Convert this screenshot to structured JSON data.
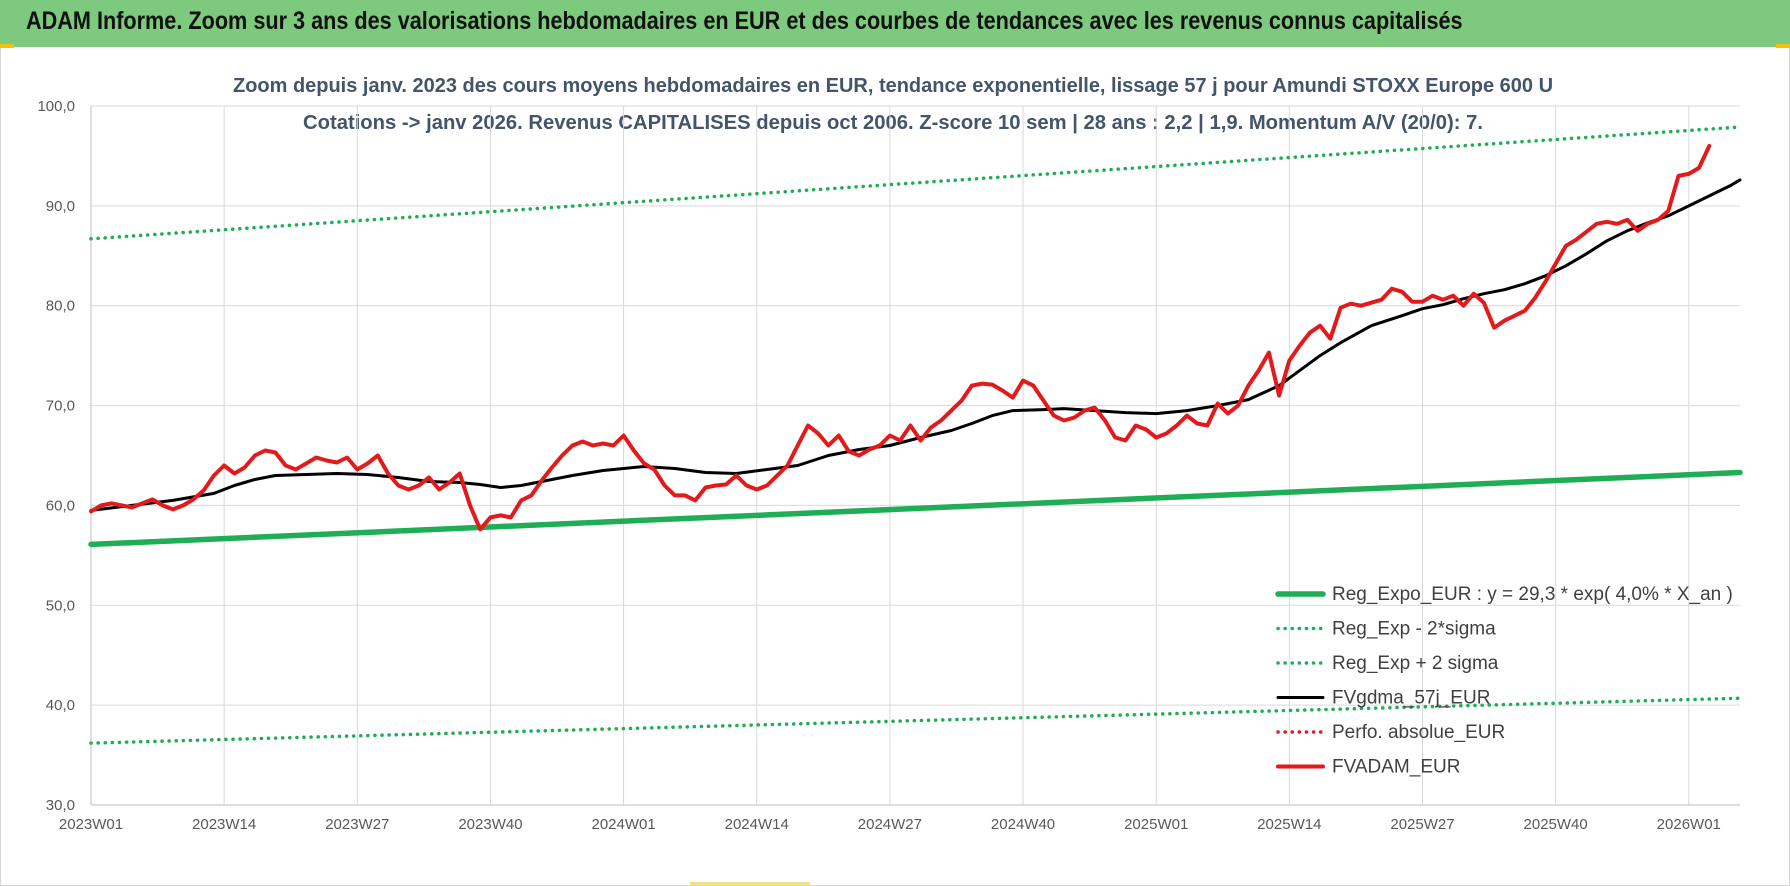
{
  "header": {
    "title": "ADAM Informe. Zoom sur 3 ans des valorisations hebdomadaires en EUR et des courbes de tendances avec les revenus connus capitalisés"
  },
  "chart_data": {
    "type": "line",
    "subtitle_line1": "Zoom depuis janv. 2023 des cours moyens hebdomadaires en EUR, tendance exponentielle, lissage 57 j pour Amundi STOXX Europe 600 U",
    "subtitle_line2": "Cotations -> janv 2026. Revenus CAPITALISES depuis oct 2006. Z-score 10 sem | 28 ans : 2,2 | 1,9. Momentum A/V (20/0): 7.",
    "x_ticks": [
      {
        "label": "2023W01",
        "week": 0
      },
      {
        "label": "2023W14",
        "week": 13
      },
      {
        "label": "2023W27",
        "week": 26
      },
      {
        "label": "2023W40",
        "week": 39
      },
      {
        "label": "2024W01",
        "week": 52
      },
      {
        "label": "2024W14",
        "week": 65
      },
      {
        "label": "2024W27",
        "week": 78
      },
      {
        "label": "2024W40",
        "week": 91
      },
      {
        "label": "2025W01",
        "week": 104
      },
      {
        "label": "2025W14",
        "week": 117
      },
      {
        "label": "2025W27",
        "week": 130
      },
      {
        "label": "2025W40",
        "week": 143
      },
      {
        "label": "2026W01",
        "week": 156
      }
    ],
    "x_range": [
      0,
      161
    ],
    "ylim": [
      30,
      100
    ],
    "y_ticks": [
      30,
      40,
      50,
      60,
      70,
      80,
      90,
      100
    ],
    "y_tick_labels": [
      "30,0",
      "40,0",
      "50,0",
      "60,0",
      "70,0",
      "80,0",
      "90,0",
      "100,0"
    ],
    "grid": true,
    "legend_position": "bottom-right",
    "series": [
      {
        "name": "Reg_Expo_EUR : y = 29,3 * exp( 4,0% *  X_an )",
        "color": "#1fad55",
        "style": "solid-thick",
        "points": [
          [
            0,
            56.1
          ],
          [
            161,
            63.3
          ]
        ]
      },
      {
        "name": "Reg_Exp - 2*sigma",
        "color": "#1fad55",
        "style": "dotted",
        "points": [
          [
            0,
            36.2
          ],
          [
            161,
            40.7
          ]
        ]
      },
      {
        "name": "Reg_Exp + 2 sigma",
        "color": "#1fad55",
        "style": "dotted",
        "points": [
          [
            0,
            86.7
          ],
          [
            161,
            97.9
          ]
        ]
      },
      {
        "name": "FVgdma_57j_EUR",
        "color": "#000000",
        "style": "solid",
        "points": [
          [
            0,
            59.5
          ],
          [
            4,
            60
          ],
          [
            8,
            60.5
          ],
          [
            12,
            61.2
          ],
          [
            14,
            62
          ],
          [
            16,
            62.6
          ],
          [
            18,
            63
          ],
          [
            21,
            63.1
          ],
          [
            24,
            63.2
          ],
          [
            27,
            63.1
          ],
          [
            30,
            62.8
          ],
          [
            33,
            62.4
          ],
          [
            36,
            62.3
          ],
          [
            38,
            62.1
          ],
          [
            40,
            61.8
          ],
          [
            42,
            62
          ],
          [
            44,
            62.4
          ],
          [
            47,
            63
          ],
          [
            50,
            63.5
          ],
          [
            52,
            63.7
          ],
          [
            54,
            63.9
          ],
          [
            57,
            63.7
          ],
          [
            60,
            63.3
          ],
          [
            63,
            63.2
          ],
          [
            66,
            63.6
          ],
          [
            69,
            64
          ],
          [
            72,
            65
          ],
          [
            75,
            65.6
          ],
          [
            78,
            66
          ],
          [
            81,
            66.8
          ],
          [
            84,
            67.5
          ],
          [
            86,
            68.2
          ],
          [
            88,
            69
          ],
          [
            90,
            69.5
          ],
          [
            93,
            69.6
          ],
          [
            95,
            69.7
          ],
          [
            98,
            69.5
          ],
          [
            101,
            69.3
          ],
          [
            104,
            69.2
          ],
          [
            107,
            69.5
          ],
          [
            110,
            70
          ],
          [
            113,
            70.6
          ],
          [
            116,
            72
          ],
          [
            118,
            73.5
          ],
          [
            120,
            75
          ],
          [
            122,
            76.3
          ],
          [
            125,
            78
          ],
          [
            128,
            79
          ],
          [
            130,
            79.7
          ],
          [
            132,
            80.1
          ],
          [
            134,
            80.7
          ],
          [
            136,
            81.2
          ],
          [
            138,
            81.6
          ],
          [
            140,
            82.2
          ],
          [
            142,
            83
          ],
          [
            144,
            84
          ],
          [
            146,
            85.2
          ],
          [
            148,
            86.5
          ],
          [
            150,
            87.5
          ],
          [
            152,
            88.3
          ],
          [
            154,
            89
          ],
          [
            156,
            90
          ],
          [
            158,
            91
          ],
          [
            160,
            92
          ],
          [
            161,
            92.6
          ]
        ]
      },
      {
        "name": "Perfo. absolue_EUR",
        "color": "#e31a1c",
        "style": "dotted",
        "points": []
      },
      {
        "name": "FVADAM_EUR",
        "color": "#e31a1c",
        "style": "solid-thick",
        "points": [
          [
            0,
            59.4
          ],
          [
            1,
            60
          ],
          [
            2,
            60.2
          ],
          [
            3,
            60
          ],
          [
            4,
            59.8
          ],
          [
            5,
            60.2
          ],
          [
            6,
            60.6
          ],
          [
            7,
            60
          ],
          [
            8,
            59.6
          ],
          [
            9,
            60
          ],
          [
            10,
            60.6
          ],
          [
            11,
            61.5
          ],
          [
            12,
            63
          ],
          [
            13,
            64
          ],
          [
            14,
            63.2
          ],
          [
            15,
            63.8
          ],
          [
            16,
            65
          ],
          [
            17,
            65.5
          ],
          [
            18,
            65.3
          ],
          [
            19,
            64
          ],
          [
            20,
            63.6
          ],
          [
            21,
            64.2
          ],
          [
            22,
            64.8
          ],
          [
            23,
            64.5
          ],
          [
            24,
            64.3
          ],
          [
            25,
            64.8
          ],
          [
            26,
            63.6
          ],
          [
            27,
            64.2
          ],
          [
            28,
            65
          ],
          [
            29,
            63.2
          ],
          [
            30,
            62
          ],
          [
            31,
            61.6
          ],
          [
            32,
            62
          ],
          [
            33,
            62.8
          ],
          [
            34,
            61.6
          ],
          [
            35,
            62.3
          ],
          [
            36,
            63.2
          ],
          [
            37,
            60
          ],
          [
            38,
            57.6
          ],
          [
            39,
            58.8
          ],
          [
            40,
            59
          ],
          [
            41,
            58.8
          ],
          [
            42,
            60.5
          ],
          [
            43,
            61
          ],
          [
            44,
            62.5
          ],
          [
            45,
            63.8
          ],
          [
            46,
            65
          ],
          [
            47,
            66
          ],
          [
            48,
            66.4
          ],
          [
            49,
            66
          ],
          [
            50,
            66.2
          ],
          [
            51,
            66
          ],
          [
            52,
            67
          ],
          [
            53,
            65.5
          ],
          [
            54,
            64.2
          ],
          [
            55,
            63.6
          ],
          [
            56,
            62
          ],
          [
            57,
            61
          ],
          [
            58,
            61
          ],
          [
            59,
            60.5
          ],
          [
            60,
            61.8
          ],
          [
            61,
            62
          ],
          [
            62,
            62.1
          ],
          [
            63,
            63
          ],
          [
            64,
            62
          ],
          [
            65,
            61.6
          ],
          [
            66,
            62
          ],
          [
            67,
            63
          ],
          [
            68,
            64
          ],
          [
            69,
            66
          ],
          [
            70,
            68
          ],
          [
            71,
            67.2
          ],
          [
            72,
            66
          ],
          [
            73,
            67
          ],
          [
            74,
            65.4
          ],
          [
            75,
            65
          ],
          [
            76,
            65.6
          ],
          [
            77,
            66
          ],
          [
            78,
            67
          ],
          [
            79,
            66.5
          ],
          [
            80,
            68
          ],
          [
            81,
            66.5
          ],
          [
            82,
            67.8
          ],
          [
            83,
            68.5
          ],
          [
            84,
            69.5
          ],
          [
            85,
            70.5
          ],
          [
            86,
            72
          ],
          [
            87,
            72.2
          ],
          [
            88,
            72.1
          ],
          [
            89,
            71.5
          ],
          [
            90,
            70.8
          ],
          [
            91,
            72.5
          ],
          [
            92,
            72
          ],
          [
            93,
            70.5
          ],
          [
            94,
            69
          ],
          [
            95,
            68.5
          ],
          [
            96,
            68.8
          ],
          [
            97,
            69.5
          ],
          [
            98,
            69.8
          ],
          [
            99,
            68.5
          ],
          [
            100,
            66.8
          ],
          [
            101,
            66.5
          ],
          [
            102,
            68
          ],
          [
            103,
            67.6
          ],
          [
            104,
            66.8
          ],
          [
            105,
            67.2
          ],
          [
            106,
            68
          ],
          [
            107,
            69
          ],
          [
            108,
            68.2
          ],
          [
            109,
            68
          ],
          [
            110,
            70.2
          ],
          [
            111,
            69.2
          ],
          [
            112,
            70
          ],
          [
            113,
            72
          ],
          [
            114,
            73.5
          ],
          [
            115,
            75.3
          ],
          [
            116,
            71
          ],
          [
            117,
            74.5
          ],
          [
            118,
            76
          ],
          [
            119,
            77.3
          ],
          [
            120,
            78
          ],
          [
            121,
            76.7
          ],
          [
            122,
            79.8
          ],
          [
            123,
            80.2
          ],
          [
            124,
            80
          ],
          [
            125,
            80.3
          ],
          [
            126,
            80.6
          ],
          [
            127,
            81.7
          ],
          [
            128,
            81.4
          ],
          [
            129,
            80.4
          ],
          [
            130,
            80.4
          ],
          [
            131,
            81
          ],
          [
            132,
            80.6
          ],
          [
            133,
            81
          ],
          [
            134,
            80
          ],
          [
            135,
            81.2
          ],
          [
            136,
            80.3
          ],
          [
            137,
            77.8
          ],
          [
            138,
            78.5
          ],
          [
            139,
            79
          ],
          [
            140,
            79.5
          ],
          [
            141,
            80.8
          ],
          [
            142,
            82.4
          ],
          [
            143,
            84.2
          ],
          [
            144,
            86
          ],
          [
            145,
            86.6
          ],
          [
            146,
            87.4
          ],
          [
            147,
            88.2
          ],
          [
            148,
            88.4
          ],
          [
            149,
            88.2
          ],
          [
            150,
            88.6
          ],
          [
            151,
            87.5
          ],
          [
            152,
            88.2
          ],
          [
            153,
            88.6
          ],
          [
            154,
            89.5
          ],
          [
            155,
            93
          ],
          [
            156,
            93.2
          ],
          [
            157,
            93.8
          ],
          [
            158,
            96
          ]
        ]
      }
    ]
  }
}
